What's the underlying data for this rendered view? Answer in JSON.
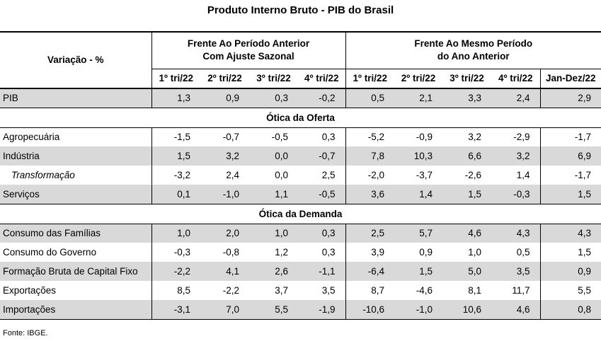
{
  "title": "Produto Interno Bruto - PIB do Brasil",
  "header": {
    "variation_label": "Variação - %",
    "group1_line1": "Frente Ao Período Anterior",
    "group1_line2": "Com Ajuste Sazonal",
    "group2_line1": "Frente Ao Mesmo Período",
    "group2_line2": "do Ano Anterior",
    "columns": [
      "1º tri/22",
      "2º tri/22",
      "3º tri/22",
      "4º tri/22",
      "1º tri/22",
      "2º tri/22",
      "3º tri/22",
      "4º tri/22",
      "Jan-Dez/22"
    ]
  },
  "rows": {
    "pib": {
      "label": "PIB",
      "values": [
        "1,3",
        "0,9",
        "0,3",
        "-0,2",
        "0,5",
        "2,1",
        "3,3",
        "2,4",
        "2,9"
      ]
    },
    "section_oferta": "Ótica da Oferta",
    "agro": {
      "label": "Agropecuária",
      "values": [
        "-1,5",
        "-0,7",
        "-0,5",
        "0,3",
        "-5,2",
        "-0,9",
        "3,2",
        "-2,9",
        "-1,7"
      ]
    },
    "industria": {
      "label": "Indústria",
      "values": [
        "1,5",
        "3,2",
        "0,0",
        "-0,7",
        "7,8",
        "10,3",
        "6,6",
        "3,2",
        "6,9"
      ]
    },
    "transformacao": {
      "label": "Transformação",
      "values": [
        "-3,2",
        "2,4",
        "0,0",
        "2,5",
        "-2,0",
        "-3,7",
        "-2,6",
        "1,4",
        "-1,7"
      ]
    },
    "servicos": {
      "label": "Serviços",
      "values": [
        "0,1",
        "-1,0",
        "1,1",
        "-0,5",
        "3,6",
        "1,4",
        "1,5",
        "-0,3",
        "1,5"
      ]
    },
    "section_demanda": "Ótica da Demanda",
    "familias": {
      "label": "Consumo das Famílias",
      "values": [
        "1,0",
        "2,0",
        "1,0",
        "0,3",
        "2,5",
        "5,7",
        "4,6",
        "4,3",
        "4,3"
      ]
    },
    "governo": {
      "label": "Consumo do Governo",
      "values": [
        "-0,3",
        "-0,8",
        "1,2",
        "0,3",
        "3,9",
        "0,9",
        "1,0",
        "0,5",
        "1,5"
      ]
    },
    "fbcf": {
      "label": "Formação Bruta de Capital Fixo",
      "values": [
        "-2,2",
        "4,1",
        "2,6",
        "-1,1",
        "-6,4",
        "1,5",
        "5,0",
        "3,5",
        "0,9"
      ]
    },
    "exportacoes": {
      "label": "Exportações",
      "values": [
        "8,5",
        "-2,2",
        "3,7",
        "3,5",
        "8,7",
        "-4,6",
        "8,1",
        "11,7",
        "5,5"
      ]
    },
    "importacoes": {
      "label": "Importações",
      "values": [
        "-3,1",
        "7,0",
        "5,5",
        "-1,9",
        "-10,6",
        "-1,0",
        "10,6",
        "4,6",
        "0,8"
      ]
    }
  },
  "source": "Fonte: IBGE.",
  "colors": {
    "shade": "#d9d9d9",
    "rule": "#000000"
  }
}
